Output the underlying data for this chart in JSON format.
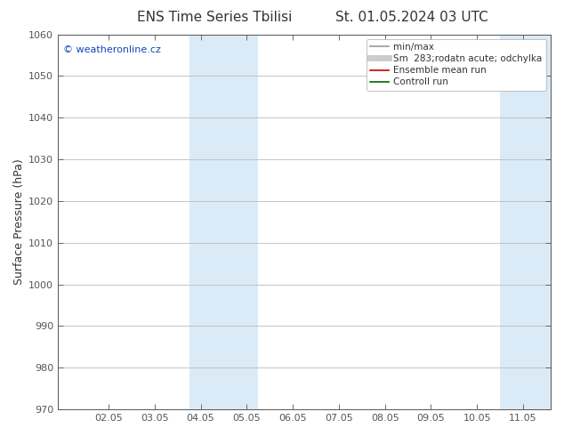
{
  "title_left": "ENS Time Series Tbilisi",
  "title_right": "St. 01.05.2024 03 UTC",
  "ylabel": "Surface Pressure (hPa)",
  "ylim": [
    970,
    1060
  ],
  "yticks": [
    970,
    980,
    990,
    1000,
    1010,
    1020,
    1030,
    1040,
    1050,
    1060
  ],
  "xtick_labels": [
    "02.05",
    "03.05",
    "04.05",
    "05.05",
    "06.05",
    "07.05",
    "08.05",
    "09.05",
    "10.05",
    "11.05"
  ],
  "xtick_positions": [
    1,
    2,
    3,
    4,
    5,
    6,
    7,
    8,
    9,
    10
  ],
  "xlim": [
    -0.1,
    10.6
  ],
  "shaded_bands": [
    {
      "xstart": 2.75,
      "xend": 4.25
    },
    {
      "xstart": 9.5,
      "xend": 10.75
    }
  ],
  "band_color": "#daeaf7",
  "watermark": "© weatheronline.cz",
  "watermark_color": "#1144bb",
  "legend_entries": [
    {
      "label": "min/max",
      "color": "#999999",
      "lw": 1.2
    },
    {
      "label": "Sm  283;rodatn acute; odchylka",
      "color": "#cccccc",
      "lw": 5
    },
    {
      "label": "Ensemble mean run",
      "color": "#cc0000",
      "lw": 1.2
    },
    {
      "label": "Controll run",
      "color": "#006600",
      "lw": 1.2
    }
  ],
  "bg_color": "#ffffff",
  "grid_color": "#bbbbbb",
  "spine_color": "#555555",
  "font_color": "#333333",
  "title_fontsize": 11,
  "ylabel_fontsize": 9,
  "tick_fontsize": 8,
  "legend_fontsize": 7.5,
  "watermark_fontsize": 8
}
